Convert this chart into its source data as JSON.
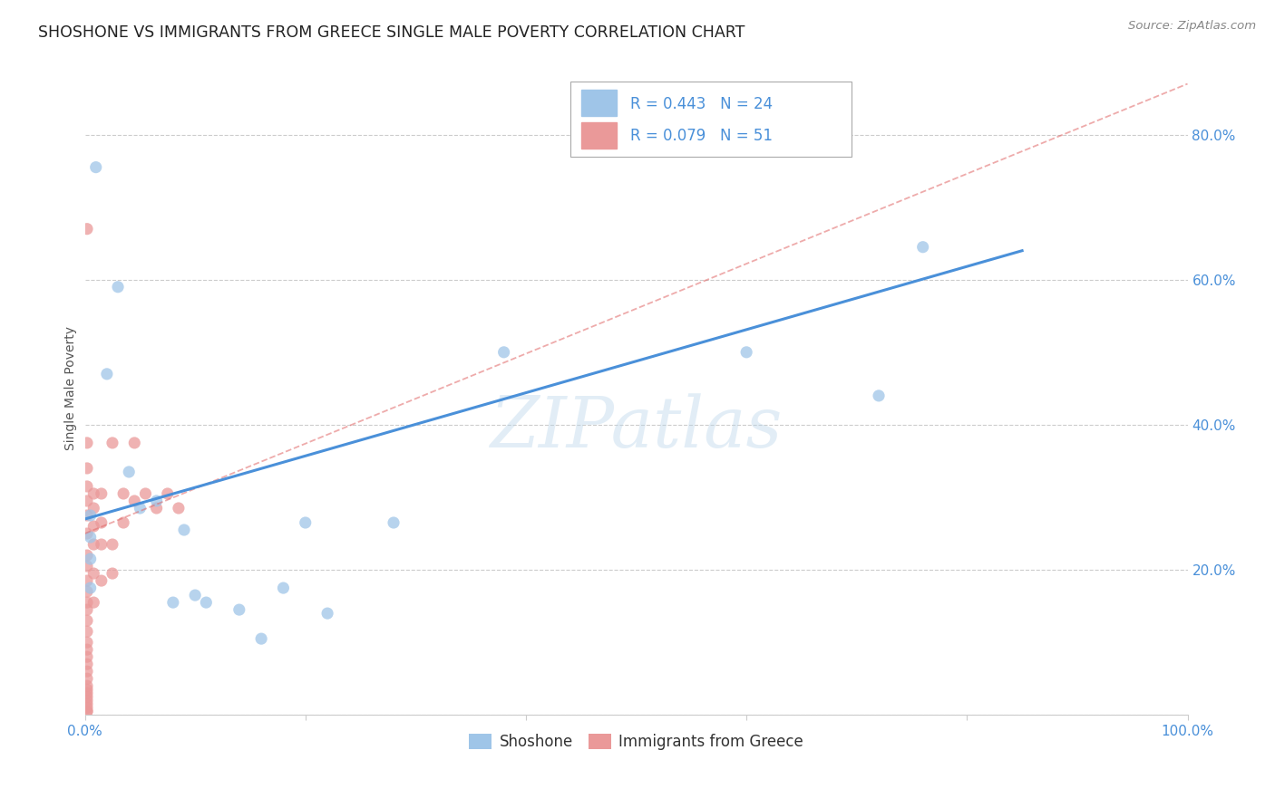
{
  "title": "SHOSHONE VS IMMIGRANTS FROM GREECE SINGLE MALE POVERTY CORRELATION CHART",
  "source": "Source: ZipAtlas.com",
  "ylabel": "Single Male Poverty",
  "legend_blue_r": "R = 0.443",
  "legend_blue_n": "N = 24",
  "legend_pink_r": "R = 0.079",
  "legend_pink_n": "N = 51",
  "blue_color": "#9fc5e8",
  "pink_color": "#ea9999",
  "blue_line_color": "#4a90d9",
  "pink_line_color": "#e06666",
  "watermark": "ZIPatlas",
  "background_color": "#ffffff",
  "grid_color": "#cccccc",
  "shoshone_x": [
    0.005,
    0.005,
    0.005,
    0.01,
    0.02,
    0.03,
    0.04,
    0.05,
    0.065,
    0.08,
    0.09,
    0.1,
    0.11,
    0.14,
    0.16,
    0.18,
    0.2,
    0.22,
    0.28,
    0.38,
    0.6,
    0.72,
    0.76,
    0.005
  ],
  "shoshone_y": [
    0.245,
    0.215,
    0.175,
    0.755,
    0.47,
    0.59,
    0.335,
    0.285,
    0.295,
    0.155,
    0.255,
    0.165,
    0.155,
    0.145,
    0.105,
    0.175,
    0.265,
    0.14,
    0.265,
    0.5,
    0.5,
    0.44,
    0.645,
    0.275
  ],
  "greece_x": [
    0.002,
    0.002,
    0.002,
    0.002,
    0.002,
    0.002,
    0.002,
    0.002,
    0.002,
    0.002,
    0.002,
    0.002,
    0.002,
    0.002,
    0.002,
    0.002,
    0.002,
    0.002,
    0.002,
    0.002,
    0.002,
    0.002,
    0.002,
    0.002,
    0.002,
    0.002,
    0.002,
    0.002,
    0.002,
    0.002,
    0.008,
    0.008,
    0.008,
    0.008,
    0.008,
    0.008,
    0.015,
    0.015,
    0.015,
    0.015,
    0.025,
    0.025,
    0.025,
    0.035,
    0.035,
    0.045,
    0.045,
    0.055,
    0.065,
    0.075,
    0.085
  ],
  "greece_y": [
    0.005,
    0.005,
    0.01,
    0.015,
    0.02,
    0.025,
    0.03,
    0.035,
    0.04,
    0.05,
    0.06,
    0.07,
    0.08,
    0.09,
    0.1,
    0.115,
    0.13,
    0.145,
    0.155,
    0.17,
    0.185,
    0.205,
    0.22,
    0.25,
    0.275,
    0.295,
    0.315,
    0.34,
    0.375,
    0.67,
    0.155,
    0.195,
    0.235,
    0.26,
    0.285,
    0.305,
    0.185,
    0.235,
    0.265,
    0.305,
    0.195,
    0.235,
    0.375,
    0.265,
    0.305,
    0.295,
    0.375,
    0.305,
    0.285,
    0.305,
    0.285
  ],
  "blue_line_x": [
    0.0,
    0.85
  ],
  "blue_line_y": [
    0.27,
    0.64
  ],
  "pink_line_x": [
    0.0,
    1.0
  ],
  "pink_line_y": [
    0.25,
    0.87
  ],
  "xlim": [
    0.0,
    1.0
  ],
  "ylim": [
    0.0,
    0.9
  ],
  "yticks": [
    0.0,
    0.2,
    0.4,
    0.6,
    0.8
  ],
  "ytick_labels": [
    "",
    "20.0%",
    "40.0%",
    "60.0%",
    "80.0%"
  ],
  "xtick_positions": [
    0.0,
    0.2,
    0.4,
    0.6,
    0.8,
    1.0
  ],
  "xtick_labels": [
    "0.0%",
    "",
    "",
    "",
    "",
    "100.0%"
  ]
}
